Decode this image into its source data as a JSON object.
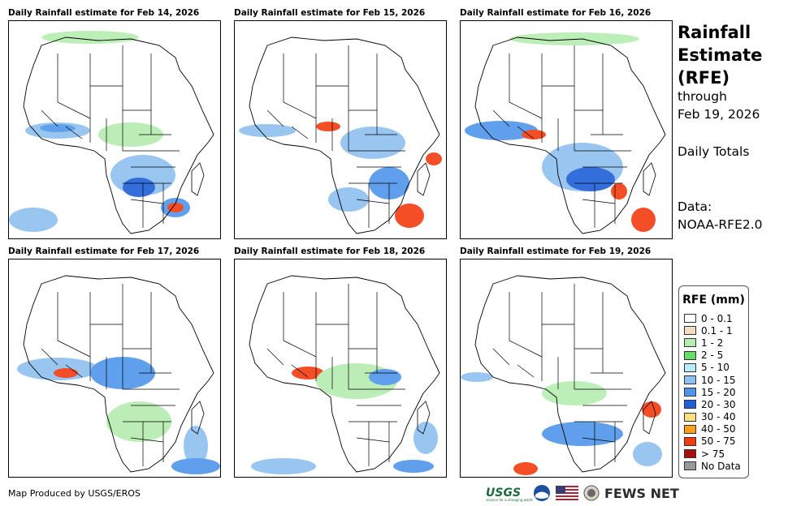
{
  "panels": [
    {
      "title": "Daily Rainfall estimate for Feb 14, 2026"
    },
    {
      "title": "Daily Rainfall estimate for Feb 15, 2026"
    },
    {
      "title": "Daily Rainfall estimate for Feb 16, 2026"
    },
    {
      "title": "Daily Rainfall estimate for Feb 17, 2026"
    },
    {
      "title": "Daily Rainfall estimate for Feb 18, 2026"
    },
    {
      "title": "Daily Rainfall estimate for Feb 19, 2026"
    }
  ],
  "sidebar": {
    "title_line1": "Rainfall",
    "title_line2": "Estimate",
    "title_line3": "(RFE)",
    "through_label": "through",
    "through_date": "Feb 19, 2026",
    "totals_label": "Daily Totals",
    "data_label": "Data:",
    "data_source": "NOAA-RFE2.0"
  },
  "legend": {
    "title": "RFE (mm)",
    "items": [
      {
        "label": "0 - 0.1",
        "color": "#ffffff"
      },
      {
        "label": "0.1 - 1",
        "color": "#f2dcc0"
      },
      {
        "label": "1 - 2",
        "color": "#b5ecb0"
      },
      {
        "label": "2 - 5",
        "color": "#66dd66"
      },
      {
        "label": "5 - 10",
        "color": "#b8ecf7"
      },
      {
        "label": "10 - 15",
        "color": "#8ec0f0"
      },
      {
        "label": "15 - 20",
        "color": "#4f95ea"
      },
      {
        "label": "20 - 30",
        "color": "#1f5fd8"
      },
      {
        "label": "30 - 40",
        "color": "#ffe080"
      },
      {
        "label": "40 - 50",
        "color": "#ff9f1a"
      },
      {
        "label": "50 - 75",
        "color": "#f23b0f"
      },
      {
        "label": "> 75",
        "color": "#a81010"
      },
      {
        "label": "No Data",
        "color": "#999999"
      }
    ]
  },
  "footer": {
    "credit": "Map Produced by USGS/EROS",
    "usgs_logo": "USGS",
    "usgs_tagline": "science for a changing world",
    "fewsnet_logo": "FEWS NET"
  }
}
